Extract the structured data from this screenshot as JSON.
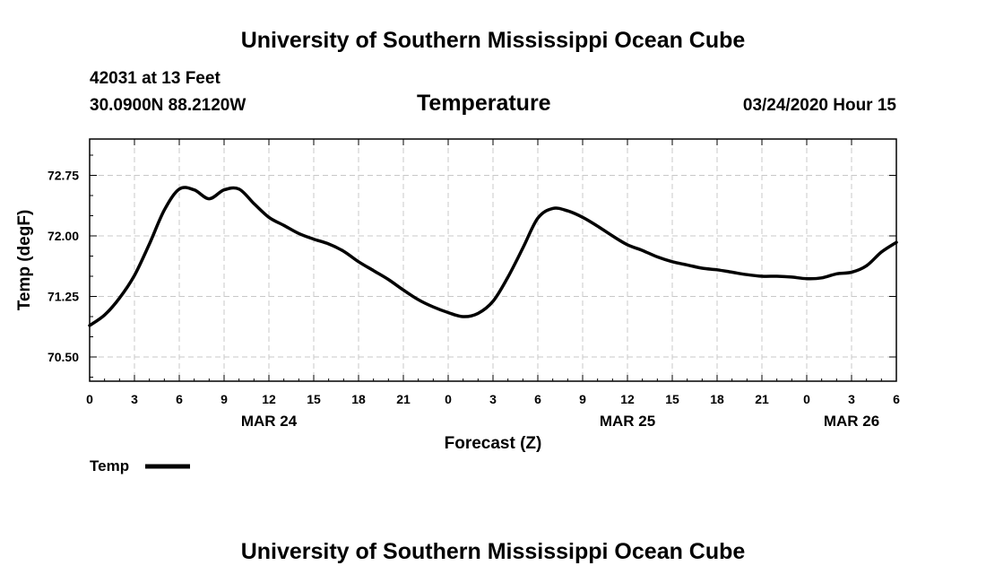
{
  "header": {
    "title_top": "University of Southern Mississippi Ocean Cube",
    "station_line": "42031 at 13 Feet",
    "coords_line": "30.0900N 88.2120W",
    "chart_title": "Temperature",
    "datetime": "03/24/2020 Hour 15",
    "title_bottom": "University of Southern Mississippi Ocean Cube"
  },
  "legend": {
    "label": "Temp"
  },
  "colors": {
    "line": "#000000",
    "grid": "#c8c8c8"
  },
  "chart_data": {
    "type": "line",
    "title": "Temperature",
    "xlabel": "Forecast (Z)",
    "ylabel": "Temp (degF)",
    "xlim": [
      0,
      54
    ],
    "ylim": [
      70.2,
      73.2
    ],
    "yticks": [
      70.5,
      71.25,
      72.0,
      72.75
    ],
    "ytick_labels": [
      "70.50",
      "71.25",
      "72.00",
      "72.75"
    ],
    "xticks": [
      0,
      3,
      6,
      9,
      12,
      15,
      18,
      21,
      24,
      27,
      30,
      33,
      36,
      39,
      42,
      45,
      48,
      51,
      54
    ],
    "xtick_labels": [
      "0",
      "3",
      "6",
      "9",
      "12",
      "15",
      "18",
      "21",
      "0",
      "3",
      "6",
      "9",
      "12",
      "15",
      "18",
      "21",
      "0",
      "3",
      "6"
    ],
    "day_labels": [
      {
        "x": 12,
        "label": "MAR 24"
      },
      {
        "x": 36,
        "label": "MAR 25"
      },
      {
        "x": 51,
        "label": "MAR 26"
      }
    ],
    "grid": true,
    "legend_position": "bottom-left",
    "series": [
      {
        "name": "Temp",
        "x": [
          0,
          1,
          2,
          3,
          4,
          5,
          6,
          7,
          8,
          9,
          10,
          11,
          12,
          13,
          14,
          15,
          16,
          17,
          18,
          19,
          20,
          21,
          22,
          23,
          24,
          25,
          26,
          27,
          28,
          29,
          30,
          31,
          32,
          33,
          34,
          35,
          36,
          37,
          38,
          39,
          40,
          41,
          42,
          43,
          44,
          45,
          46,
          47,
          48,
          49,
          50,
          51,
          52,
          53,
          54
        ],
        "y": [
          70.89,
          71.02,
          71.23,
          71.51,
          71.9,
          72.32,
          72.58,
          72.57,
          72.46,
          72.57,
          72.58,
          72.4,
          72.23,
          72.13,
          72.03,
          71.96,
          71.9,
          71.81,
          71.68,
          71.57,
          71.46,
          71.33,
          71.21,
          71.12,
          71.05,
          71.0,
          71.04,
          71.19,
          71.49,
          71.85,
          72.22,
          72.34,
          72.31,
          72.23,
          72.12,
          72.0,
          71.89,
          71.82,
          71.74,
          71.68,
          71.64,
          71.6,
          71.58,
          71.55,
          71.52,
          71.5,
          71.5,
          71.49,
          71.47,
          71.48,
          71.53,
          71.55,
          71.63,
          71.8,
          71.92
        ]
      }
    ]
  }
}
